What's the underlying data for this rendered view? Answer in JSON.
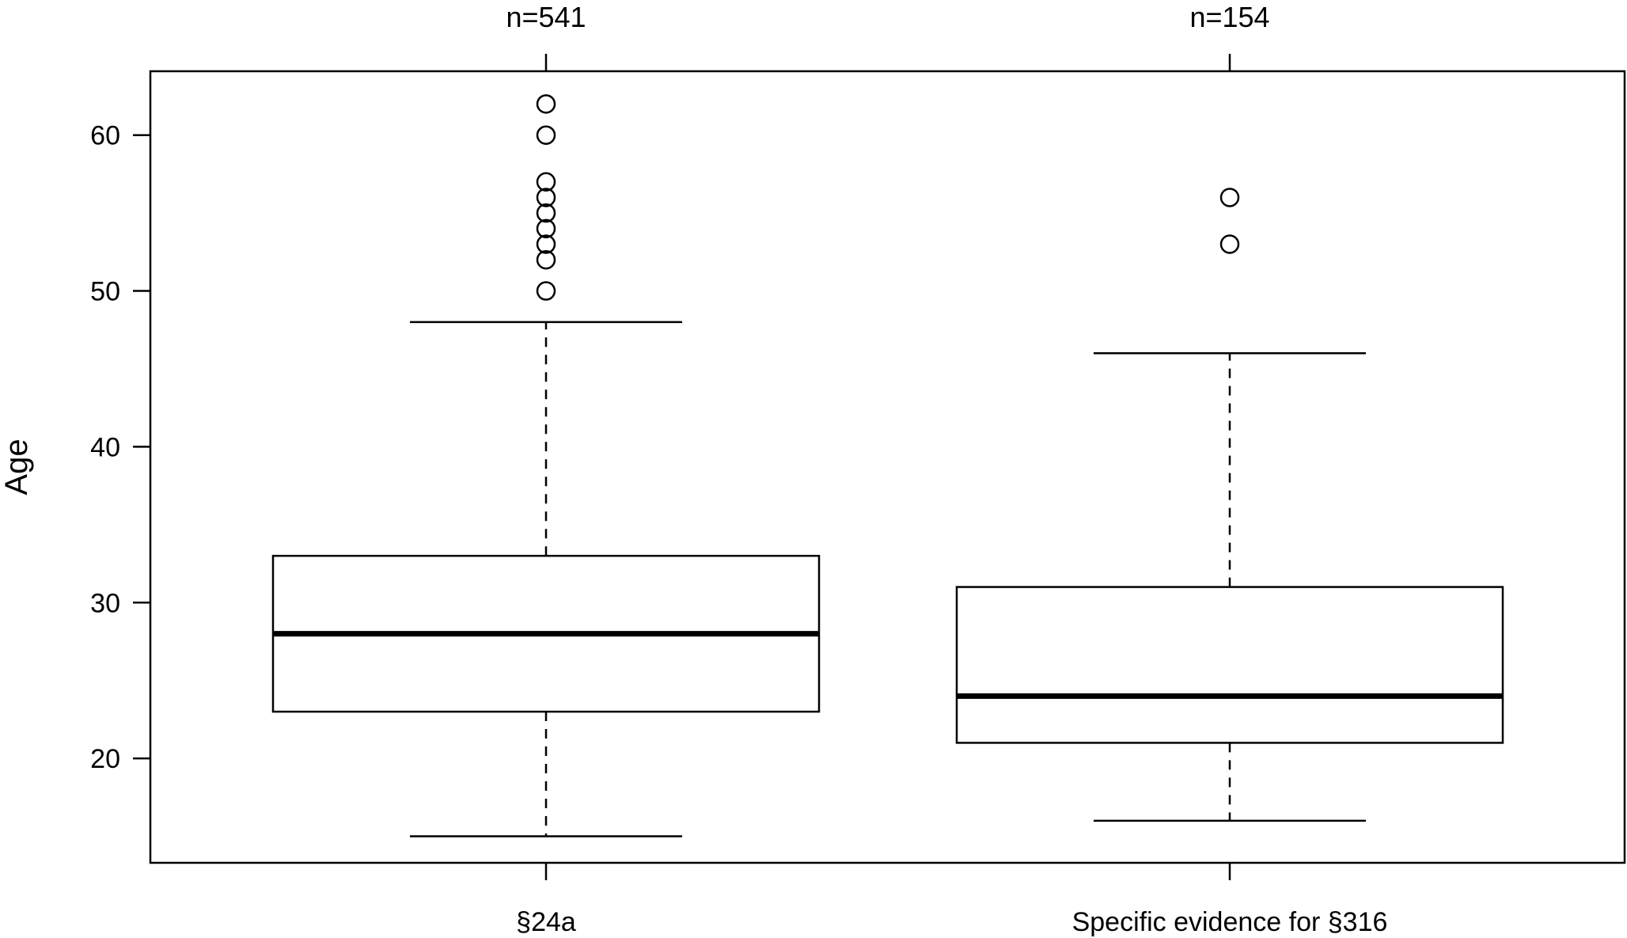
{
  "chart_data": {
    "type": "boxplot",
    "title": "",
    "xlabel": "",
    "ylabel": "Age",
    "ylim": [
      13.3,
      64.1
    ],
    "yticks": [
      20,
      30,
      40,
      50,
      60
    ],
    "grid": false,
    "legend": "none",
    "categories": [
      "§24a",
      "Specific evidence for §316"
    ],
    "counts": [
      "n=541",
      "n=154"
    ],
    "boxes": [
      {
        "category": "§24a",
        "whisker_low": 15,
        "q1": 23,
        "median": 28,
        "q3": 33,
        "whisker_high": 48,
        "outliers": [
          50,
          52,
          53,
          54,
          55,
          56,
          57,
          60,
          62
        ]
      },
      {
        "category": "Specific evidence for §316",
        "whisker_low": 16,
        "q1": 21,
        "median": 24,
        "q3": 31,
        "whisker_high": 46,
        "outliers": [
          53,
          56
        ]
      }
    ]
  },
  "colors": {
    "stroke": "#000000",
    "background": "#ffffff"
  }
}
